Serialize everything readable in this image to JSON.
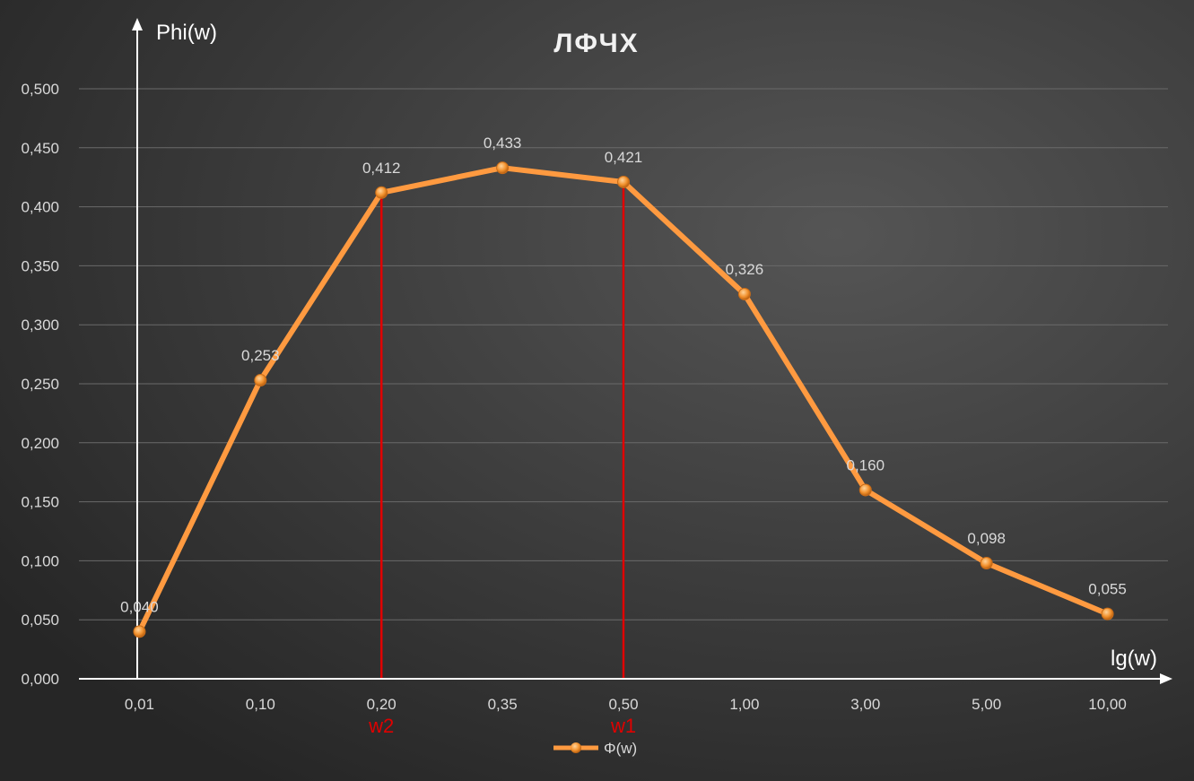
{
  "chart_data": {
    "type": "line",
    "title": "ЛФЧХ",
    "ylabel": "Phi(w)",
    "xlabel": "lg(w)",
    "categories": [
      "0,01",
      "0,10",
      "0,20",
      "0,35",
      "0,50",
      "1,00",
      "3,00",
      "5,00",
      "10,00"
    ],
    "series": [
      {
        "name": "Φ(w)",
        "values": [
          0.04,
          0.253,
          0.412,
          0.433,
          0.421,
          0.326,
          0.16,
          0.098,
          0.055
        ],
        "labels": [
          "0,040",
          "0,253",
          "0,412",
          "0,433",
          "0,421",
          "0,326",
          "0,160",
          "0,098",
          "0,055"
        ],
        "color": "#ff9a40"
      }
    ],
    "ylim": [
      0,
      0.5
    ],
    "yticks": [
      "0,000",
      "0,050",
      "0,100",
      "0,150",
      "0,200",
      "0,250",
      "0,300",
      "0,350",
      "0,400",
      "0,450",
      "0,500"
    ],
    "grid": true,
    "legend_position": "bottom",
    "markers": [
      {
        "label": "w2",
        "category": "0,20",
        "color": "#e00000"
      },
      {
        "label": "w1",
        "category": "0,50",
        "color": "#e00000"
      }
    ]
  }
}
